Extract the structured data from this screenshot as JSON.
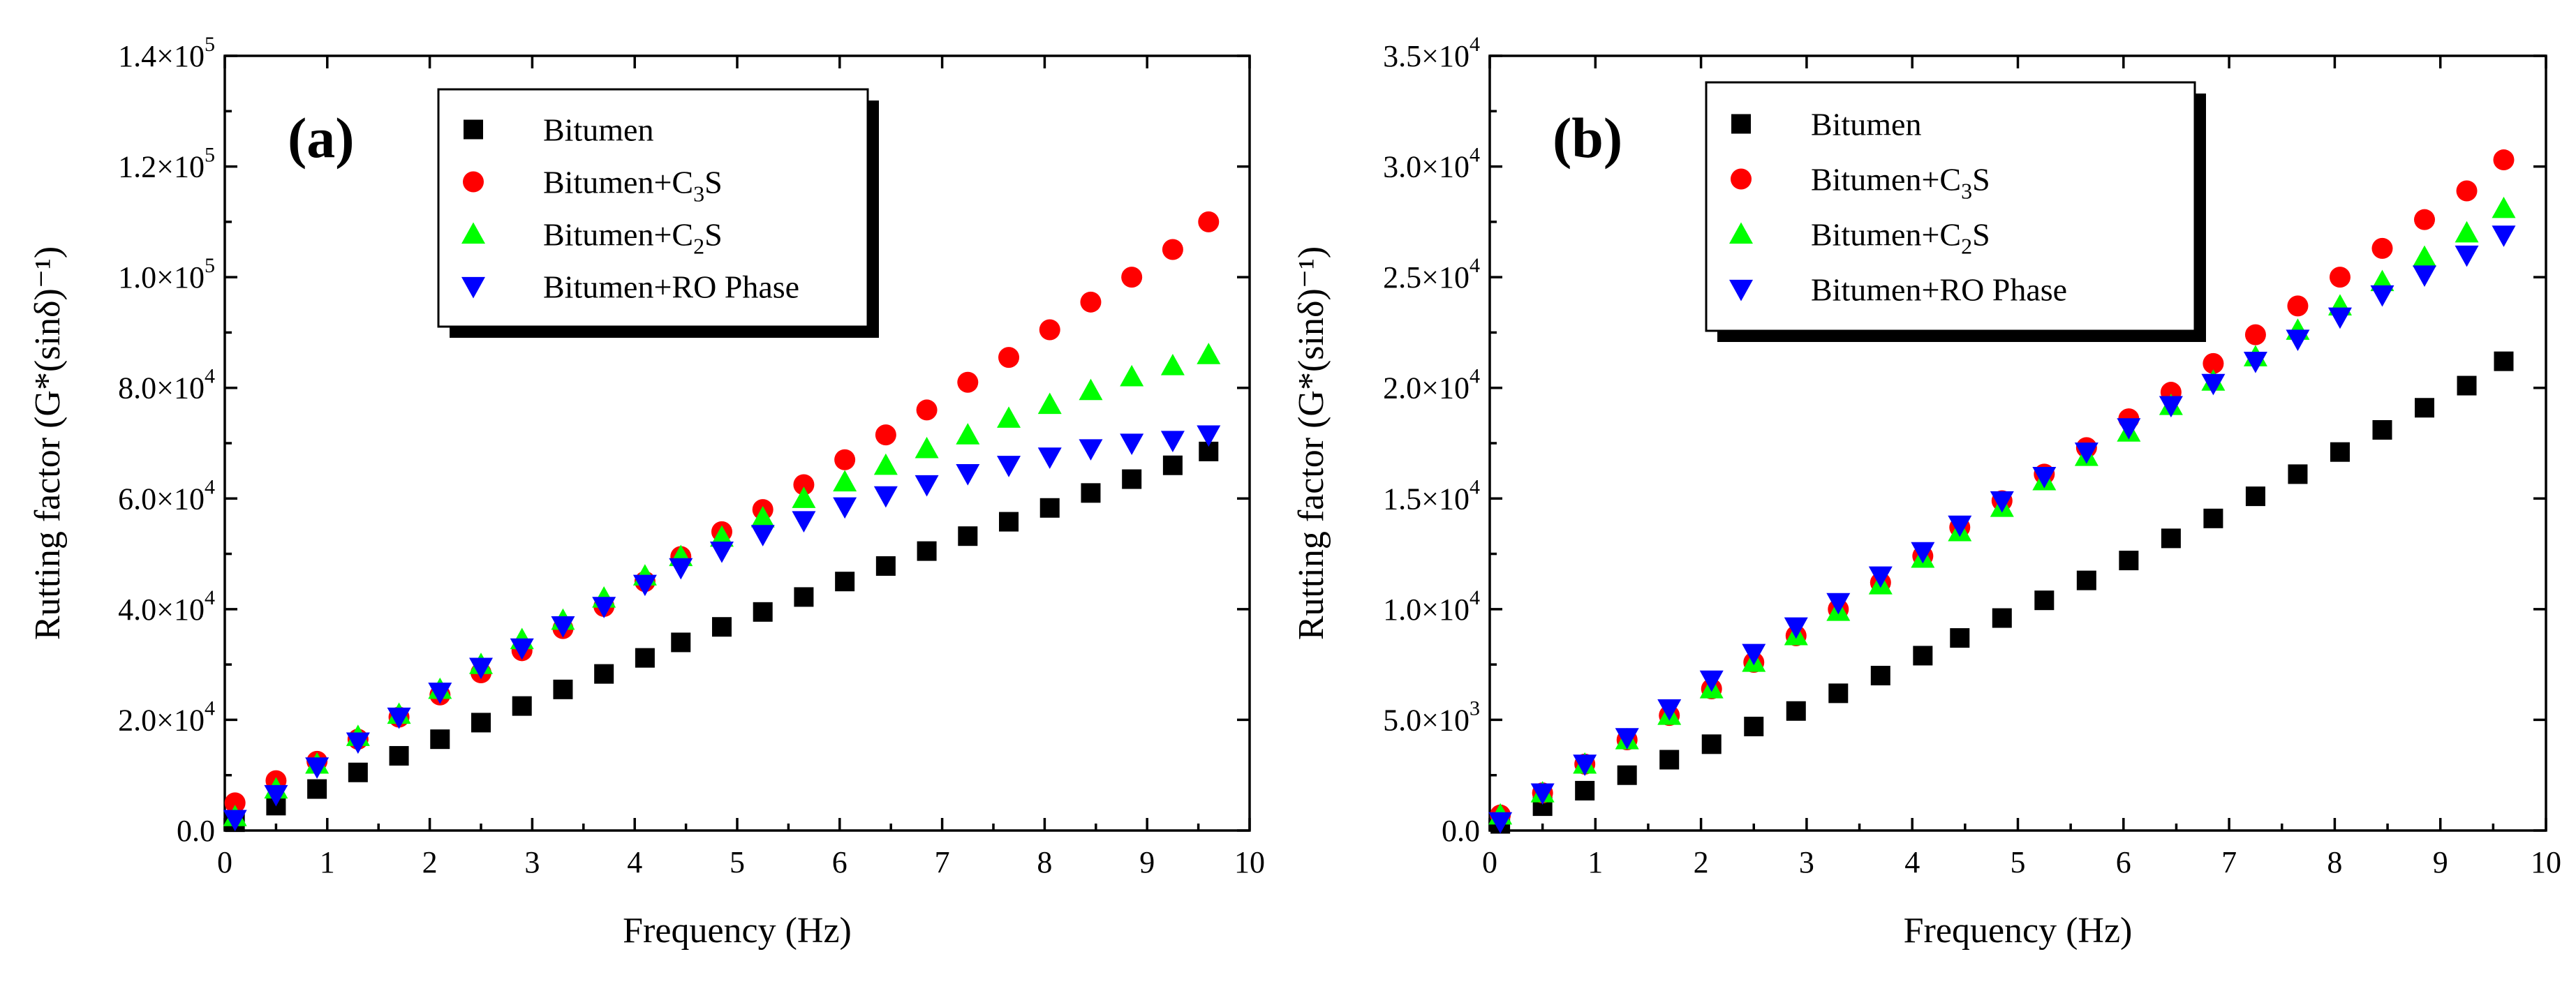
{
  "figure": {
    "x_label": "Frequency (Hz)",
    "y_label": "Rutting factor (G*(sinδ)⁻¹)"
  },
  "chart_data": [
    {
      "type": "scatter",
      "panel_label": "(a)",
      "xlabel": "Frequency (Hz)",
      "ylabel": "Rutting factor (G*(sinδ)⁻¹)",
      "xlim": [
        0,
        10
      ],
      "ylim": [
        0,
        140000
      ],
      "x_ticks": [
        "0",
        "1",
        "2",
        "3",
        "4",
        "5",
        "6",
        "7",
        "8",
        "9",
        "10"
      ],
      "y_ticks": [
        {
          "value": 0,
          "mantissa": "0.0",
          "exp": ""
        },
        {
          "value": 20000,
          "mantissa": "2.0×10",
          "exp": "4"
        },
        {
          "value": 40000,
          "mantissa": "4.0×10",
          "exp": "4"
        },
        {
          "value": 60000,
          "mantissa": "6.0×10",
          "exp": "4"
        },
        {
          "value": 80000,
          "mantissa": "8.0×10",
          "exp": "4"
        },
        {
          "value": 100000,
          "mantissa": "1.0×10",
          "exp": "5"
        },
        {
          "value": 120000,
          "mantissa": "1.2×10",
          "exp": "5"
        },
        {
          "value": 140000,
          "mantissa": "1.4×10",
          "exp": "5"
        }
      ],
      "legend_position": "top-center",
      "x": [
        0.1,
        0.5,
        0.9,
        1.3,
        1.7,
        2.1,
        2.5,
        2.9,
        3.3,
        3.7,
        4.1,
        4.45,
        4.85,
        5.25,
        5.65,
        6.05,
        6.45,
        6.85,
        7.25,
        7.65,
        8.05,
        8.45,
        8.85,
        9.25,
        9.6
      ],
      "series": [
        {
          "name": "Bitumen",
          "marker": "square",
          "color": "#000000",
          "values": [
            1500,
            4500,
            7500,
            10500,
            13500,
            16500,
            19500,
            22500,
            25500,
            28300,
            31200,
            34000,
            36800,
            39500,
            42200,
            45000,
            47800,
            50500,
            53200,
            55800,
            58300,
            61000,
            63500,
            66000,
            68500
          ]
        },
        {
          "name": "Bitumen+C3S",
          "name_main": "Bitumen+C",
          "name_sub": "3",
          "name_end": "S",
          "marker": "circle",
          "color": "#ff0000",
          "values": [
            5000,
            9000,
            12500,
            16500,
            20500,
            24500,
            28500,
            32500,
            36500,
            40500,
            45000,
            49500,
            54000,
            58000,
            62500,
            67000,
            71500,
            76000,
            81000,
            85500,
            90500,
            95500,
            100000,
            105000,
            110000
          ]
        },
        {
          "name": "Bitumen+C2S",
          "name_main": "Bitumen+C",
          "name_sub": "2",
          "name_end": "S",
          "marker": "triangle-up",
          "color": "#00ff00",
          "values": [
            2500,
            7500,
            12000,
            17000,
            21000,
            25500,
            30000,
            34500,
            38000,
            42000,
            46000,
            49500,
            53000,
            56500,
            60000,
            63000,
            66000,
            69000,
            71500,
            74500,
            77000,
            79500,
            82000,
            84000,
            86000
          ]
        },
        {
          "name": "Bitumen+RO Phase",
          "marker": "triangle-down",
          "color": "#0000ff",
          "values": [
            2000,
            6500,
            11500,
            16000,
            20500,
            25000,
            29500,
            33000,
            37000,
            40500,
            44500,
            47500,
            50500,
            53500,
            56000,
            58500,
            60500,
            62500,
            64500,
            66000,
            67500,
            69000,
            70000,
            70500,
            71500
          ]
        }
      ]
    },
    {
      "type": "scatter",
      "panel_label": "(b)",
      "xlabel": "Frequency (Hz)",
      "ylabel": "Rutting factor (G*(sinδ)⁻¹)",
      "xlim": [
        0,
        10
      ],
      "ylim": [
        0,
        35000
      ],
      "x_ticks": [
        "0",
        "1",
        "2",
        "3",
        "4",
        "5",
        "6",
        "7",
        "8",
        "9",
        "10"
      ],
      "y_ticks": [
        {
          "value": 0,
          "mantissa": "0.0",
          "exp": ""
        },
        {
          "value": 5000,
          "mantissa": "5.0×10",
          "exp": "3"
        },
        {
          "value": 10000,
          "mantissa": "1.0×10",
          "exp": "4"
        },
        {
          "value": 15000,
          "mantissa": "1.5×10",
          "exp": "4"
        },
        {
          "value": 20000,
          "mantissa": "2.0×10",
          "exp": "4"
        },
        {
          "value": 25000,
          "mantissa": "2.5×10",
          "exp": "4"
        },
        {
          "value": 30000,
          "mantissa": "3.0×10",
          "exp": "4"
        },
        {
          "value": 35000,
          "mantissa": "3.5×10",
          "exp": "4"
        }
      ],
      "legend_position": "top-center",
      "x": [
        0.1,
        0.5,
        0.9,
        1.3,
        1.7,
        2.1,
        2.5,
        2.9,
        3.3,
        3.7,
        4.1,
        4.45,
        4.85,
        5.25,
        5.65,
        6.05,
        6.45,
        6.85,
        7.25,
        7.65,
        8.05,
        8.45,
        8.85,
        9.25,
        9.6
      ],
      "series": [
        {
          "name": "Bitumen",
          "marker": "square",
          "color": "#000000",
          "values": [
            300,
            1100,
            1800,
            2500,
            3200,
            3900,
            4700,
            5400,
            6200,
            7000,
            7900,
            8700,
            9600,
            10400,
            11300,
            12200,
            13200,
            14100,
            15100,
            16100,
            17100,
            18100,
            19100,
            20100,
            21200
          ]
        },
        {
          "name": "Bitumen+C3S",
          "name_main": "Bitumen+C",
          "name_sub": "3",
          "name_end": "S",
          "marker": "circle",
          "color": "#ff0000",
          "values": [
            700,
            1700,
            3000,
            4100,
            5200,
            6400,
            7600,
            8800,
            10000,
            11200,
            12400,
            13700,
            14900,
            16100,
            17300,
            18600,
            19800,
            21100,
            22400,
            23700,
            25000,
            26300,
            27600,
            28900,
            30300
          ]
        },
        {
          "name": "Bitumen+C2S",
          "name_main": "Bitumen+C",
          "name_sub": "2",
          "name_end": "S",
          "marker": "triangle-up",
          "color": "#00ff00",
          "values": [
            700,
            1700,
            3000,
            4100,
            5200,
            6400,
            7600,
            8800,
            9900,
            11100,
            12300,
            13500,
            14600,
            15800,
            16900,
            18000,
            19200,
            20300,
            21400,
            22600,
            23700,
            24800,
            25900,
            27000,
            28100
          ]
        },
        {
          "name": "Bitumen+RO Phase",
          "marker": "triangle-down",
          "color": "#0000ff",
          "values": [
            400,
            1700,
            3000,
            4200,
            5500,
            6800,
            8000,
            9200,
            10300,
            11500,
            12600,
            13800,
            14900,
            16000,
            17100,
            18200,
            19200,
            20200,
            21200,
            22200,
            23200,
            24200,
            25100,
            26000,
            26900
          ]
        }
      ]
    }
  ]
}
